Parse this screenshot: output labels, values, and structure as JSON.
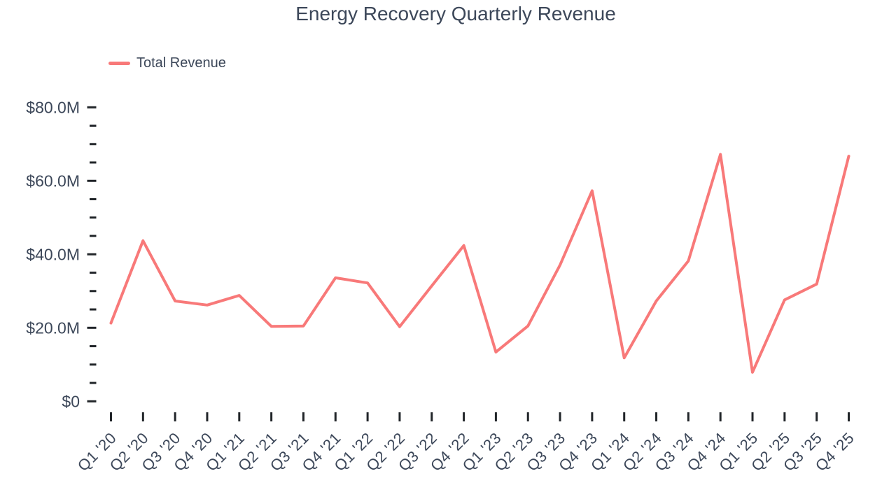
{
  "title": "Energy Recovery Quarterly Revenue",
  "legend": {
    "label": "Total Revenue"
  },
  "colors": {
    "line": "#f87979",
    "text": "#3c4759",
    "tick": "#212529",
    "background": "#ffffff"
  },
  "chart_data": {
    "type": "line",
    "title": "Energy Recovery Quarterly Revenue",
    "categories": [
      "Q1 '20",
      "Q2 '20",
      "Q3 '20",
      "Q4 '20",
      "Q1 '21",
      "Q2 '21",
      "Q3 '21",
      "Q4 '21",
      "Q1 '22",
      "Q2 '22",
      "Q3 '22",
      "Q4 '22",
      "Q1 '23",
      "Q2 '23",
      "Q3 '23",
      "Q4 '23",
      "Q1 '24",
      "Q2 '24",
      "Q3 '24",
      "Q4 '24",
      "Q1 '25",
      "Q2 '25",
      "Q3 '25",
      "Q4 '25"
    ],
    "series": [
      {
        "name": "Total Revenue",
        "values": [
          21.3,
          43.7,
          27.3,
          26.2,
          28.8,
          20.4,
          20.5,
          33.6,
          32.2,
          20.3,
          31.4,
          42.4,
          13.4,
          20.5,
          37.1,
          57.3,
          11.8,
          27.3,
          38.2,
          67.2,
          7.9,
          27.6,
          31.9,
          66.7
        ]
      }
    ],
    "unit": "millions USD",
    "xlabel": "",
    "ylabel": "",
    "ylim": [
      0,
      80
    ],
    "y_major_step": 20,
    "y_minor_step": 5,
    "y_tick_labels": [
      "$0",
      "$20.0M",
      "$40.0M",
      "$60.0M",
      "$80.0M"
    ],
    "grid": false,
    "legend_position": "top-left"
  }
}
